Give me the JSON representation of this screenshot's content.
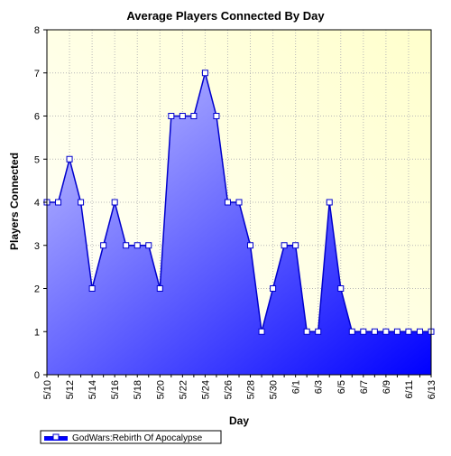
{
  "chart_data": {
    "type": "area",
    "title": "Average Players Connected By Day",
    "xlabel": "Day",
    "ylabel": "Players Connected",
    "ylim": [
      0,
      8
    ],
    "y_ticks": [
      0,
      1,
      2,
      3,
      4,
      5,
      6,
      7,
      8
    ],
    "grid": true,
    "legend_position": "bottom-left",
    "x_tick_labels": [
      "5/10",
      "5/12",
      "5/14",
      "5/16",
      "5/18",
      "5/20",
      "5/22",
      "5/24",
      "5/26",
      "5/28",
      "5/30",
      "6/1",
      "6/3",
      "6/5",
      "6/7",
      "6/9",
      "6/11",
      "6/13"
    ],
    "categories": [
      "5/10",
      "5/11",
      "5/12",
      "5/13",
      "5/14",
      "5/15",
      "5/16",
      "5/17",
      "5/18",
      "5/19",
      "5/20",
      "5/21",
      "5/22",
      "5/23",
      "5/24",
      "5/25",
      "5/26",
      "5/27",
      "5/28",
      "5/29",
      "5/30",
      "5/31",
      "6/1",
      "6/2",
      "6/3",
      "6/4",
      "6/5",
      "6/6",
      "6/7",
      "6/8",
      "6/9",
      "6/10",
      "6/11",
      "6/12",
      "6/13"
    ],
    "series": [
      {
        "name": "GodWars:Rebirth Of Apocalypse",
        "values": [
          4,
          4,
          5,
          4,
          2,
          3,
          4,
          3,
          3,
          3,
          2,
          6,
          6,
          6,
          7,
          6,
          4,
          4,
          3,
          1,
          2,
          3,
          3,
          1,
          1,
          4,
          2,
          1,
          1,
          1,
          1,
          1,
          1,
          1,
          1
        ]
      }
    ],
    "colors": {
      "line": "#0000cc",
      "fill_light": "#c8c8ff",
      "fill_dark": "#0000ff",
      "plot_bg_left": "#ffffff",
      "plot_bg_right": "#ffffcc",
      "grid": "#b8b8b8"
    }
  }
}
